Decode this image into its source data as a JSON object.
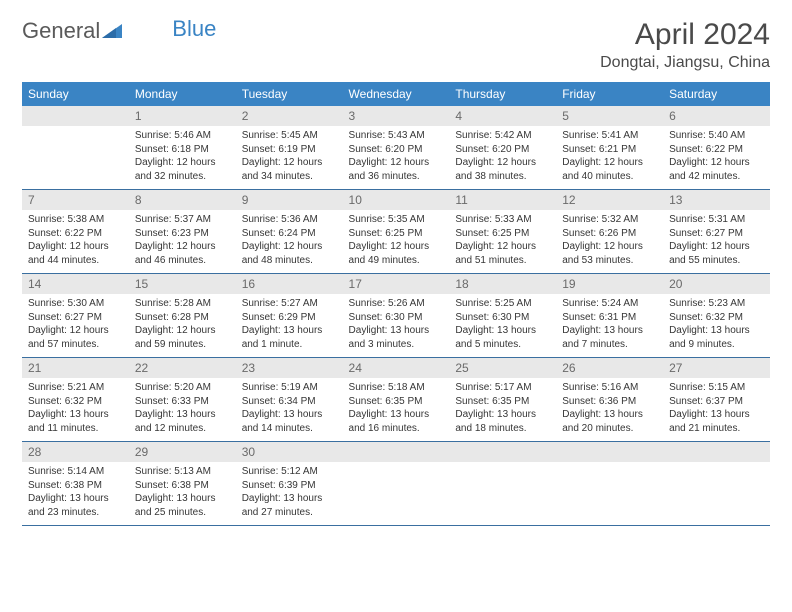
{
  "brand": {
    "part1": "General",
    "part2": "Blue"
  },
  "title": "April 2024",
  "location": "Dongtai, Jiangsu, China",
  "colors": {
    "header_bg": "#3a84c4",
    "header_text": "#ffffff",
    "daynum_bg": "#e8e8e8",
    "daynum_text": "#6a6a6a",
    "body_text": "#363636",
    "rule": "#3a6fa0"
  },
  "dow": [
    "Sunday",
    "Monday",
    "Tuesday",
    "Wednesday",
    "Thursday",
    "Friday",
    "Saturday"
  ],
  "weeks": [
    [
      {
        "n": "",
        "sr": "",
        "ss": "",
        "dl": ""
      },
      {
        "n": "1",
        "sr": "Sunrise: 5:46 AM",
        "ss": "Sunset: 6:18 PM",
        "dl": "Daylight: 12 hours and 32 minutes."
      },
      {
        "n": "2",
        "sr": "Sunrise: 5:45 AM",
        "ss": "Sunset: 6:19 PM",
        "dl": "Daylight: 12 hours and 34 minutes."
      },
      {
        "n": "3",
        "sr": "Sunrise: 5:43 AM",
        "ss": "Sunset: 6:20 PM",
        "dl": "Daylight: 12 hours and 36 minutes."
      },
      {
        "n": "4",
        "sr": "Sunrise: 5:42 AM",
        "ss": "Sunset: 6:20 PM",
        "dl": "Daylight: 12 hours and 38 minutes."
      },
      {
        "n": "5",
        "sr": "Sunrise: 5:41 AM",
        "ss": "Sunset: 6:21 PM",
        "dl": "Daylight: 12 hours and 40 minutes."
      },
      {
        "n": "6",
        "sr": "Sunrise: 5:40 AM",
        "ss": "Sunset: 6:22 PM",
        "dl": "Daylight: 12 hours and 42 minutes."
      }
    ],
    [
      {
        "n": "7",
        "sr": "Sunrise: 5:38 AM",
        "ss": "Sunset: 6:22 PM",
        "dl": "Daylight: 12 hours and 44 minutes."
      },
      {
        "n": "8",
        "sr": "Sunrise: 5:37 AM",
        "ss": "Sunset: 6:23 PM",
        "dl": "Daylight: 12 hours and 46 minutes."
      },
      {
        "n": "9",
        "sr": "Sunrise: 5:36 AM",
        "ss": "Sunset: 6:24 PM",
        "dl": "Daylight: 12 hours and 48 minutes."
      },
      {
        "n": "10",
        "sr": "Sunrise: 5:35 AM",
        "ss": "Sunset: 6:25 PM",
        "dl": "Daylight: 12 hours and 49 minutes."
      },
      {
        "n": "11",
        "sr": "Sunrise: 5:33 AM",
        "ss": "Sunset: 6:25 PM",
        "dl": "Daylight: 12 hours and 51 minutes."
      },
      {
        "n": "12",
        "sr": "Sunrise: 5:32 AM",
        "ss": "Sunset: 6:26 PM",
        "dl": "Daylight: 12 hours and 53 minutes."
      },
      {
        "n": "13",
        "sr": "Sunrise: 5:31 AM",
        "ss": "Sunset: 6:27 PM",
        "dl": "Daylight: 12 hours and 55 minutes."
      }
    ],
    [
      {
        "n": "14",
        "sr": "Sunrise: 5:30 AM",
        "ss": "Sunset: 6:27 PM",
        "dl": "Daylight: 12 hours and 57 minutes."
      },
      {
        "n": "15",
        "sr": "Sunrise: 5:28 AM",
        "ss": "Sunset: 6:28 PM",
        "dl": "Daylight: 12 hours and 59 minutes."
      },
      {
        "n": "16",
        "sr": "Sunrise: 5:27 AM",
        "ss": "Sunset: 6:29 PM",
        "dl": "Daylight: 13 hours and 1 minute."
      },
      {
        "n": "17",
        "sr": "Sunrise: 5:26 AM",
        "ss": "Sunset: 6:30 PM",
        "dl": "Daylight: 13 hours and 3 minutes."
      },
      {
        "n": "18",
        "sr": "Sunrise: 5:25 AM",
        "ss": "Sunset: 6:30 PM",
        "dl": "Daylight: 13 hours and 5 minutes."
      },
      {
        "n": "19",
        "sr": "Sunrise: 5:24 AM",
        "ss": "Sunset: 6:31 PM",
        "dl": "Daylight: 13 hours and 7 minutes."
      },
      {
        "n": "20",
        "sr": "Sunrise: 5:23 AM",
        "ss": "Sunset: 6:32 PM",
        "dl": "Daylight: 13 hours and 9 minutes."
      }
    ],
    [
      {
        "n": "21",
        "sr": "Sunrise: 5:21 AM",
        "ss": "Sunset: 6:32 PM",
        "dl": "Daylight: 13 hours and 11 minutes."
      },
      {
        "n": "22",
        "sr": "Sunrise: 5:20 AM",
        "ss": "Sunset: 6:33 PM",
        "dl": "Daylight: 13 hours and 12 minutes."
      },
      {
        "n": "23",
        "sr": "Sunrise: 5:19 AM",
        "ss": "Sunset: 6:34 PM",
        "dl": "Daylight: 13 hours and 14 minutes."
      },
      {
        "n": "24",
        "sr": "Sunrise: 5:18 AM",
        "ss": "Sunset: 6:35 PM",
        "dl": "Daylight: 13 hours and 16 minutes."
      },
      {
        "n": "25",
        "sr": "Sunrise: 5:17 AM",
        "ss": "Sunset: 6:35 PM",
        "dl": "Daylight: 13 hours and 18 minutes."
      },
      {
        "n": "26",
        "sr": "Sunrise: 5:16 AM",
        "ss": "Sunset: 6:36 PM",
        "dl": "Daylight: 13 hours and 20 minutes."
      },
      {
        "n": "27",
        "sr": "Sunrise: 5:15 AM",
        "ss": "Sunset: 6:37 PM",
        "dl": "Daylight: 13 hours and 21 minutes."
      }
    ],
    [
      {
        "n": "28",
        "sr": "Sunrise: 5:14 AM",
        "ss": "Sunset: 6:38 PM",
        "dl": "Daylight: 13 hours and 23 minutes."
      },
      {
        "n": "29",
        "sr": "Sunrise: 5:13 AM",
        "ss": "Sunset: 6:38 PM",
        "dl": "Daylight: 13 hours and 25 minutes."
      },
      {
        "n": "30",
        "sr": "Sunrise: 5:12 AM",
        "ss": "Sunset: 6:39 PM",
        "dl": "Daylight: 13 hours and 27 minutes."
      },
      {
        "n": "",
        "sr": "",
        "ss": "",
        "dl": ""
      },
      {
        "n": "",
        "sr": "",
        "ss": "",
        "dl": ""
      },
      {
        "n": "",
        "sr": "",
        "ss": "",
        "dl": ""
      },
      {
        "n": "",
        "sr": "",
        "ss": "",
        "dl": ""
      }
    ]
  ]
}
